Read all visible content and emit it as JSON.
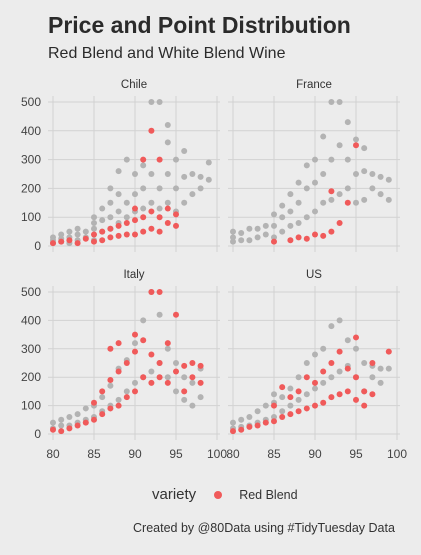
{
  "chart_data": {
    "type": "scatter",
    "title": "Price and Point Distribution",
    "subtitle": "Red Blend and White Blend Wine",
    "caption": "Created by @80Data using #TidyTuesday Data",
    "legend": {
      "title": "variety",
      "position": "bottom",
      "entries": [
        "Red Blend"
      ]
    },
    "colors": {
      "Red Blend": "#f05a5a",
      "other": "#b3b3b3",
      "background": "#ececec",
      "grid": "#d2d2d2"
    },
    "grid": true,
    "xlim": [
      80,
      100
    ],
    "ylim": [
      0,
      500
    ],
    "x_ticks": [
      80,
      85,
      90,
      95,
      100
    ],
    "y_ticks": [
      0,
      100,
      200,
      300,
      400,
      500
    ],
    "facets": [
      {
        "name": "Chile",
        "other_points": [
          [
            80,
            10
          ],
          [
            80,
            20
          ],
          [
            80,
            30
          ],
          [
            81,
            15
          ],
          [
            81,
            25
          ],
          [
            81,
            40
          ],
          [
            82,
            10
          ],
          [
            82,
            30
          ],
          [
            82,
            50
          ],
          [
            83,
            20
          ],
          [
            83,
            40
          ],
          [
            83,
            60
          ],
          [
            84,
            30
          ],
          [
            84,
            50
          ],
          [
            85,
            20
          ],
          [
            85,
            60
          ],
          [
            85,
            80
          ],
          [
            85,
            100
          ],
          [
            86,
            50
          ],
          [
            86,
            90
          ],
          [
            86,
            130
          ],
          [
            87,
            60
          ],
          [
            87,
            100
          ],
          [
            87,
            150
          ],
          [
            87,
            200
          ],
          [
            88,
            80
          ],
          [
            88,
            120
          ],
          [
            88,
            180
          ],
          [
            88,
            260
          ],
          [
            89,
            100
          ],
          [
            89,
            150
          ],
          [
            89,
            300
          ],
          [
            90,
            120
          ],
          [
            90,
            180
          ],
          [
            90,
            250
          ],
          [
            91,
            130
          ],
          [
            91,
            200
          ],
          [
            91,
            280
          ],
          [
            92,
            150
          ],
          [
            92,
            250
          ],
          [
            92,
            500
          ],
          [
            93,
            130
          ],
          [
            93,
            200
          ],
          [
            93,
            500
          ],
          [
            94,
            150
          ],
          [
            94,
            250
          ],
          [
            94,
            360
          ],
          [
            94,
            420
          ],
          [
            95,
            120
          ],
          [
            95,
            200
          ],
          [
            95,
            300
          ],
          [
            96,
            150
          ],
          [
            96,
            240
          ],
          [
            96,
            330
          ],
          [
            97,
            180
          ],
          [
            97,
            250
          ],
          [
            98,
            200
          ],
          [
            98,
            240
          ],
          [
            99,
            230
          ],
          [
            99,
            290
          ]
        ],
        "red_points": [
          [
            80,
            10
          ],
          [
            81,
            15
          ],
          [
            82,
            20
          ],
          [
            83,
            10
          ],
          [
            84,
            25
          ],
          [
            85,
            15
          ],
          [
            85,
            40
          ],
          [
            86,
            20
          ],
          [
            86,
            50
          ],
          [
            87,
            30
          ],
          [
            87,
            60
          ],
          [
            88,
            35
          ],
          [
            88,
            70
          ],
          [
            89,
            40
          ],
          [
            89,
            80
          ],
          [
            90,
            40
          ],
          [
            90,
            90
          ],
          [
            90,
            130
          ],
          [
            91,
            50
          ],
          [
            91,
            100
          ],
          [
            91,
            300
          ],
          [
            92,
            60
          ],
          [
            92,
            120
          ],
          [
            92,
            400
          ],
          [
            93,
            50
          ],
          [
            93,
            100
          ],
          [
            93,
            300
          ],
          [
            94,
            80
          ],
          [
            94,
            130
          ],
          [
            95,
            70
          ],
          [
            95,
            110
          ]
        ]
      },
      {
        "name": "France",
        "other_points": [
          [
            80,
            15
          ],
          [
            80,
            30
          ],
          [
            80,
            50
          ],
          [
            81,
            20
          ],
          [
            81,
            45
          ],
          [
            82,
            20
          ],
          [
            82,
            60
          ],
          [
            83,
            30
          ],
          [
            83,
            60
          ],
          [
            84,
            40
          ],
          [
            84,
            70
          ],
          [
            85,
            30
          ],
          [
            85,
            70
          ],
          [
            85,
            110
          ],
          [
            86,
            50
          ],
          [
            86,
            100
          ],
          [
            86,
            140
          ],
          [
            87,
            70
          ],
          [
            87,
            120
          ],
          [
            87,
            180
          ],
          [
            88,
            80
          ],
          [
            88,
            150
          ],
          [
            88,
            220
          ],
          [
            89,
            100
          ],
          [
            89,
            200
          ],
          [
            89,
            280
          ],
          [
            90,
            120
          ],
          [
            90,
            220
          ],
          [
            90,
            300
          ],
          [
            91,
            150
          ],
          [
            91,
            250
          ],
          [
            91,
            380
          ],
          [
            92,
            160
          ],
          [
            92,
            300
          ],
          [
            92,
            500
          ],
          [
            93,
            180
          ],
          [
            93,
            350
          ],
          [
            93,
            500
          ],
          [
            94,
            200
          ],
          [
            94,
            300
          ],
          [
            94,
            430
          ],
          [
            95,
            150
          ],
          [
            95,
            250
          ],
          [
            95,
            370
          ],
          [
            96,
            160
          ],
          [
            96,
            260
          ],
          [
            96,
            340
          ],
          [
            97,
            200
          ],
          [
            97,
            250
          ],
          [
            98,
            180
          ],
          [
            98,
            240
          ],
          [
            99,
            160
          ],
          [
            99,
            230
          ]
        ],
        "red_points": [
          [
            85,
            15
          ],
          [
            87,
            20
          ],
          [
            88,
            30
          ],
          [
            89,
            25
          ],
          [
            90,
            40
          ],
          [
            91,
            35
          ],
          [
            92,
            50
          ],
          [
            92,
            190
          ],
          [
            93,
            80
          ],
          [
            94,
            150
          ],
          [
            95,
            350
          ]
        ]
      },
      {
        "name": "Italy",
        "other_points": [
          [
            80,
            20
          ],
          [
            80,
            40
          ],
          [
            81,
            30
          ],
          [
            81,
            50
          ],
          [
            82,
            30
          ],
          [
            82,
            60
          ],
          [
            83,
            40
          ],
          [
            83,
            70
          ],
          [
            84,
            50
          ],
          [
            84,
            90
          ],
          [
            85,
            60
          ],
          [
            85,
            100
          ],
          [
            86,
            80
          ],
          [
            86,
            130
          ],
          [
            87,
            100
          ],
          [
            87,
            170
          ],
          [
            88,
            120
          ],
          [
            88,
            230
          ],
          [
            89,
            150
          ],
          [
            89,
            260
          ],
          [
            90,
            180
          ],
          [
            90,
            320
          ],
          [
            91,
            200
          ],
          [
            91,
            400
          ],
          [
            92,
            220
          ],
          [
            92,
            500
          ],
          [
            93,
            250
          ],
          [
            93,
            420
          ],
          [
            94,
            200
          ],
          [
            94,
            300
          ],
          [
            95,
            150
          ],
          [
            95,
            250
          ],
          [
            96,
            120
          ],
          [
            96,
            200
          ],
          [
            97,
            100
          ],
          [
            97,
            180
          ],
          [
            98,
            130
          ],
          [
            98,
            230
          ]
        ],
        "red_points": [
          [
            80,
            15
          ],
          [
            81,
            10
          ],
          [
            82,
            20
          ],
          [
            83,
            30
          ],
          [
            84,
            40
          ],
          [
            85,
            50
          ],
          [
            85,
            110
          ],
          [
            86,
            70
          ],
          [
            86,
            150
          ],
          [
            87,
            90
          ],
          [
            87,
            190
          ],
          [
            87,
            300
          ],
          [
            88,
            100
          ],
          [
            88,
            220
          ],
          [
            88,
            320
          ],
          [
            89,
            130
          ],
          [
            89,
            250
          ],
          [
            90,
            150
          ],
          [
            90,
            290
          ],
          [
            90,
            350
          ],
          [
            91,
            200
          ],
          [
            91,
            330
          ],
          [
            92,
            180
          ],
          [
            92,
            280
          ],
          [
            92,
            500
          ],
          [
            93,
            200
          ],
          [
            93,
            250
          ],
          [
            93,
            500
          ],
          [
            94,
            180
          ],
          [
            94,
            320
          ],
          [
            95,
            220
          ],
          [
            95,
            420
          ],
          [
            96,
            150
          ],
          [
            96,
            240
          ],
          [
            97,
            200
          ],
          [
            97,
            250
          ],
          [
            98,
            180
          ],
          [
            98,
            240
          ]
        ]
      },
      {
        "name": "US",
        "other_points": [
          [
            80,
            20
          ],
          [
            80,
            40
          ],
          [
            81,
            25
          ],
          [
            81,
            50
          ],
          [
            82,
            30
          ],
          [
            82,
            60
          ],
          [
            83,
            40
          ],
          [
            83,
            80
          ],
          [
            84,
            50
          ],
          [
            84,
            100
          ],
          [
            85,
            60
          ],
          [
            85,
            110
          ],
          [
            85,
            140
          ],
          [
            86,
            80
          ],
          [
            86,
            130
          ],
          [
            87,
            100
          ],
          [
            87,
            160
          ],
          [
            88,
            120
          ],
          [
            88,
            200
          ],
          [
            89,
            140
          ],
          [
            89,
            250
          ],
          [
            90,
            160
          ],
          [
            90,
            280
          ],
          [
            91,
            180
          ],
          [
            91,
            300
          ],
          [
            92,
            200
          ],
          [
            92,
            380
          ],
          [
            93,
            220
          ],
          [
            93,
            400
          ],
          [
            94,
            240
          ],
          [
            94,
            330
          ],
          [
            95,
            200
          ],
          [
            95,
            300
          ],
          [
            96,
            150
          ],
          [
            96,
            250
          ],
          [
            97,
            200
          ],
          [
            97,
            240
          ],
          [
            98,
            180
          ],
          [
            98,
            230
          ],
          [
            99,
            230
          ]
        ],
        "red_points": [
          [
            80,
            10
          ],
          [
            81,
            15
          ],
          [
            82,
            25
          ],
          [
            83,
            30
          ],
          [
            84,
            40
          ],
          [
            85,
            45
          ],
          [
            85,
            100
          ],
          [
            86,
            60
          ],
          [
            86,
            165
          ],
          [
            87,
            70
          ],
          [
            87,
            130
          ],
          [
            88,
            80
          ],
          [
            88,
            150
          ],
          [
            89,
            90
          ],
          [
            89,
            200
          ],
          [
            90,
            100
          ],
          [
            90,
            180
          ],
          [
            91,
            110
          ],
          [
            91,
            220
          ],
          [
            92,
            130
          ],
          [
            92,
            250
          ],
          [
            93,
            140
          ],
          [
            93,
            290
          ],
          [
            94,
            150
          ],
          [
            94,
            230
          ],
          [
            95,
            120
          ],
          [
            95,
            200
          ],
          [
            95,
            340
          ],
          [
            96,
            100
          ],
          [
            96,
            150
          ],
          [
            97,
            140
          ],
          [
            97,
            250
          ],
          [
            99,
            290
          ]
        ]
      }
    ]
  }
}
